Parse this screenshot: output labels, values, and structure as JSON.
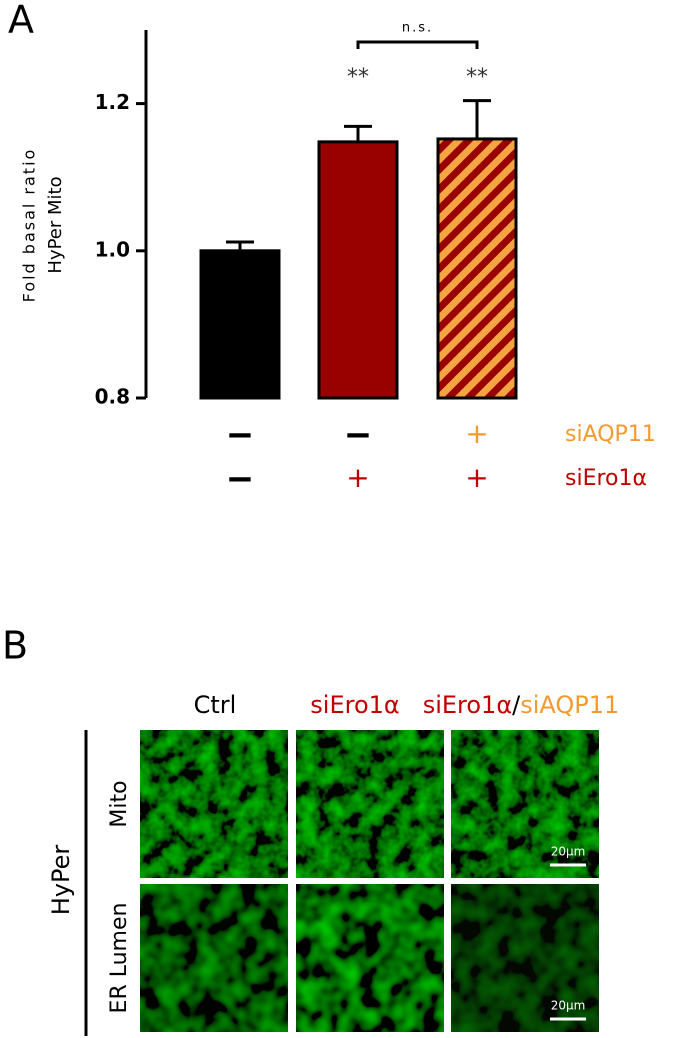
{
  "panel_labels": [
    "A",
    "B"
  ],
  "chart_data": {
    "type": "bar",
    "ylabel": [
      "Fold basal ratio",
      "HyPer Mito"
    ],
    "categories": [
      null,
      null,
      null
    ],
    "values": [
      1.0,
      1.148,
      1.152
    ],
    "errors": [
      0.012,
      0.021,
      0.052
    ],
    "colors": [
      "#000000",
      "#990000",
      "#990000"
    ],
    "hatch": [
      null,
      null,
      "#f5a442"
    ],
    "ylim": [
      0.8,
      1.3
    ],
    "yticks": [
      0.8,
      {
        "value": 1,
        "label": "1.0"
      },
      1.2
    ],
    "annotations": [
      {
        "text": "**",
        "x": 1
      },
      {
        "text": "**",
        "x": 2
      },
      {
        "text": "n.s.",
        "from": 1,
        "to": 2
      }
    ]
  },
  "conditions": [
    {
      "name": "siAQP11",
      "color": "#f39a2e",
      "marks": [
        "–",
        "–",
        "+"
      ]
    },
    {
      "name": "siEro1α",
      "color": "#c00000",
      "marks": [
        "–",
        "+",
        "+"
      ]
    }
  ],
  "images": {
    "columns": [
      [
        "Ctrl"
      ],
      [
        "siEro1α"
      ],
      [
        "siEro1α",
        "/",
        "siAQP11"
      ]
    ],
    "column_colors": [
      [
        "#000000"
      ],
      [
        "#c00000"
      ],
      [
        "#c00000",
        "#000000",
        "#f39a2e"
      ]
    ],
    "group_label": "HyPer",
    "rows": [
      "Mito",
      "ER Lumen"
    ],
    "scale_bar": "20μm"
  }
}
